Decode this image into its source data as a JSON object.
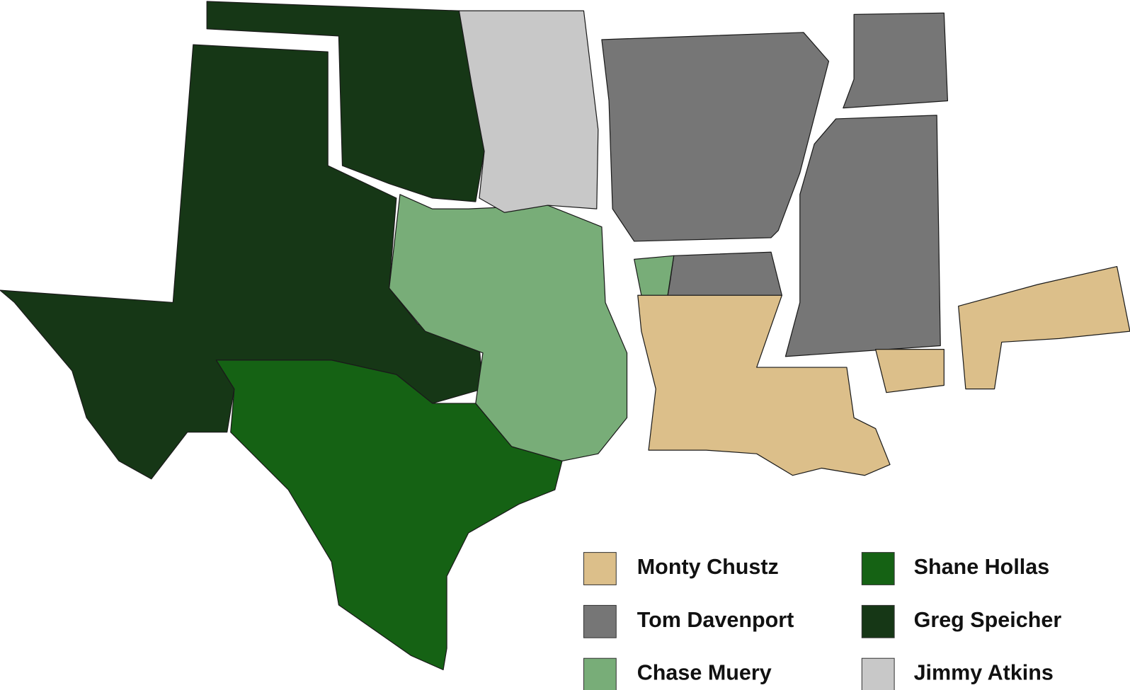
{
  "legend": [
    {
      "name": "Monty Chustz",
      "color": "#dcbf8a"
    },
    {
      "name": "Tom Davenport",
      "color": "#767676"
    },
    {
      "name": "Chase Muery",
      "color": "#78ad78"
    },
    {
      "name": "Shane Hollas",
      "color": "#156214"
    },
    {
      "name": "Greg Speicher",
      "color": "#163716"
    },
    {
      "name": "Jimmy Atkins",
      "color": "#c8c8c8"
    }
  ]
}
